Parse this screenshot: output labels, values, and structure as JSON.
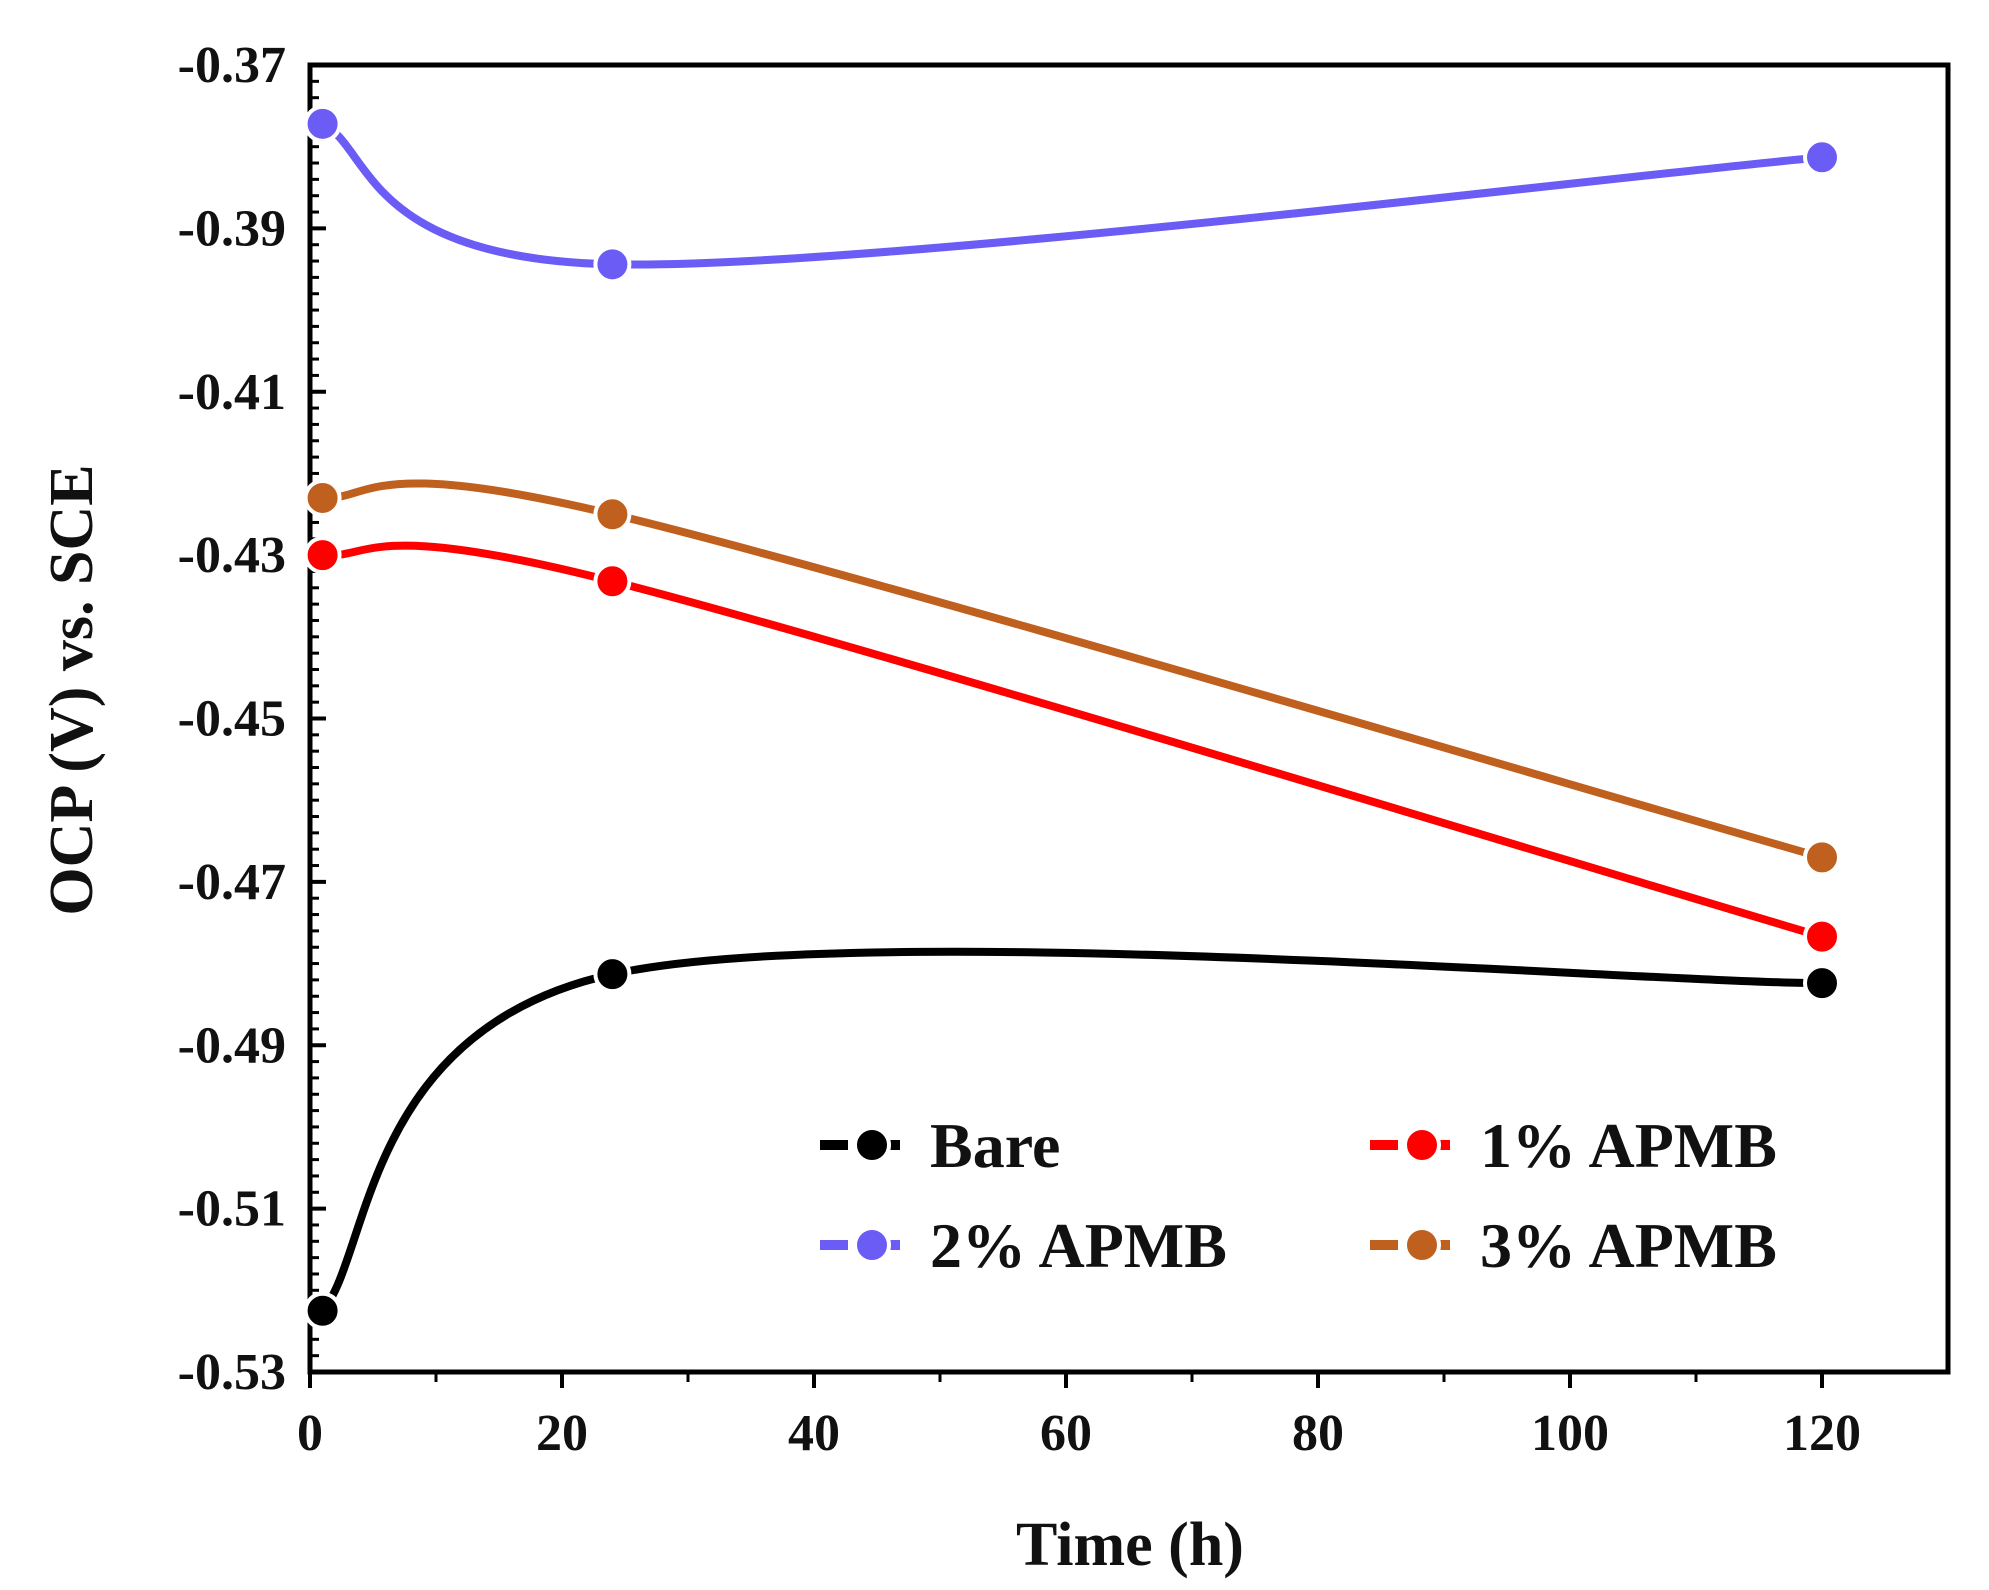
{
  "chart_data": {
    "type": "line",
    "title": "",
    "xlabel": "Time  (h)",
    "ylabel": "OCP (V) vs. SCE",
    "xlim": [
      0,
      130
    ],
    "ylim": [
      -0.53,
      -0.37
    ],
    "xticks": [
      0,
      20,
      40,
      60,
      80,
      100,
      120
    ],
    "xtick_labels": [
      "0",
      "20",
      "40",
      "60",
      "80",
      "100",
      "120"
    ],
    "yticks": [
      -0.37,
      -0.39,
      -0.41,
      -0.43,
      -0.45,
      -0.47,
      -0.49,
      -0.51,
      -0.53
    ],
    "ytick_labels": [
      "-0.37",
      "-0.39",
      "-0.41",
      "-0.43",
      "-0.45",
      "-0.47",
      "-0.49",
      "-0.51",
      "-0.53"
    ],
    "grid": false,
    "legend_position": "bottom-right",
    "x": [
      1,
      24,
      120
    ],
    "series": [
      {
        "name": "Bare",
        "color": "#000000",
        "values": [
          -0.5225,
          -0.4813,
          -0.4824
        ]
      },
      {
        "name": "1% APMB",
        "color": "#ff0000",
        "values": [
          -0.43,
          -0.4332,
          -0.4767
        ]
      },
      {
        "name": "2% APMB",
        "color": "#6b5cf5",
        "values": [
          -0.3772,
          -0.3944,
          -0.3813
        ]
      },
      {
        "name": "3% APMB",
        "color": "#c0601f",
        "values": [
          -0.423,
          -0.425,
          -0.467
        ]
      }
    ]
  }
}
